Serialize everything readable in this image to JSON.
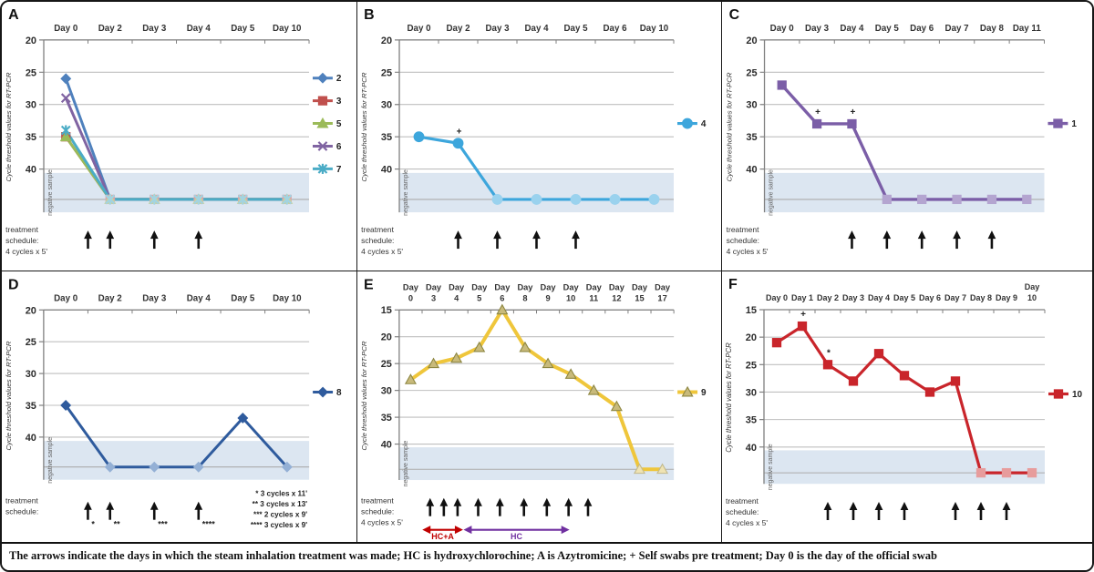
{
  "caption": "The arrows indicate the days in which the steam inhalation treatment was made;  HC is hydroxychlorochine; A is Azytromicine; + Self swabs pre treatment; Day 0 is the day of the official swab",
  "y_axis_label": "Cycle threshold values for RT-PCR",
  "negative_label": "negative sample",
  "colors": {
    "grid": "#BFBFBF",
    "neg_band": "#DCE6F1",
    "axis": "#808080",
    "arrow": "#111111",
    "annotation": "#222222"
  },
  "chart_data": [
    {
      "letter": "A",
      "type": "line",
      "y_axis_inverted": true,
      "ylabel": "Cycle threshold values for RT-PCR",
      "categories": [
        "Day 0",
        "Day 2",
        "Day 3",
        "Day 4",
        "Day 5",
        "Day 10"
      ],
      "y_ticks": [
        20,
        25,
        30,
        35,
        40
      ],
      "y_min": 20,
      "y_max": 47,
      "band_top": 40.6,
      "neg_value": 44.7,
      "series": [
        {
          "name": "2",
          "marker": "diamond",
          "color": "#4F81BD",
          "faded": "#9FB9DA",
          "width": 3,
          "values": [
            26,
            "neg",
            "neg",
            "neg",
            "neg",
            "neg"
          ]
        },
        {
          "name": "3",
          "marker": "square",
          "color": "#C0504D",
          "faded": "#DCA7A5",
          "width": 3,
          "values": [
            35,
            "neg",
            "neg",
            "neg",
            "neg",
            "neg"
          ]
        },
        {
          "name": "5",
          "marker": "triangle",
          "color": "#9BBB59",
          "faded": "#C6D6A0",
          "width": 3,
          "values": [
            35,
            "neg",
            "neg",
            "neg",
            "neg",
            "neg"
          ]
        },
        {
          "name": "6",
          "marker": "x",
          "color": "#8064A2",
          "faded": "#B5A6CC",
          "width": 3,
          "values": [
            29,
            "neg",
            "neg",
            "neg",
            "neg",
            "neg"
          ]
        },
        {
          "name": "7",
          "marker": "asterisk",
          "color": "#4BACC6",
          "faded": "#A2D4E2",
          "width": 3,
          "values": [
            34,
            "neg",
            "neg",
            "neg",
            "neg",
            "neg"
          ]
        }
      ],
      "annotations": [],
      "arrows": [
        {
          "pos": 0.5,
          "label": ""
        },
        {
          "pos": 1,
          "label": ""
        },
        {
          "pos": 2,
          "label": ""
        },
        {
          "pos": 3,
          "label": ""
        }
      ],
      "schedule": [
        "treatment",
        "schedule:",
        "4 cycles  x  5'"
      ],
      "footnotes": [],
      "spans": []
    },
    {
      "letter": "B",
      "type": "line",
      "y_axis_inverted": true,
      "ylabel": "Cycle threshold values for RT-PCR",
      "categories": [
        "Day 0",
        "Day 2",
        "Day 3",
        "Day 4",
        "Day 5",
        "Day 6",
        "Day 10"
      ],
      "y_ticks": [
        20,
        25,
        30,
        35,
        40
      ],
      "y_min": 20,
      "y_max": 47,
      "band_top": 40.6,
      "neg_value": 44.7,
      "series": [
        {
          "name": "4",
          "marker": "circle",
          "color": "#3DA6DC",
          "faded": "#9AD2EE",
          "width": 3.2,
          "values": [
            35,
            36,
            "neg",
            "neg",
            "neg",
            "neg",
            "neg"
          ]
        }
      ],
      "annotations": [
        {
          "day": 1,
          "symbol": "+"
        }
      ],
      "arrows": [
        {
          "pos": 1,
          "label": ""
        },
        {
          "pos": 2,
          "label": ""
        },
        {
          "pos": 3,
          "label": ""
        },
        {
          "pos": 4,
          "label": ""
        }
      ],
      "schedule": [
        "treatment",
        "schedule:",
        "4 cycles  x  5'"
      ],
      "footnotes": [],
      "spans": []
    },
    {
      "letter": "C",
      "type": "line",
      "y_axis_inverted": true,
      "ylabel": "Cycle threshold values for RT-PCR",
      "categories": [
        "Day 0",
        "Day 3",
        "Day 4",
        "Day 5",
        "Day 6",
        "Day 7",
        "Day 8",
        "Day 11"
      ],
      "y_ticks": [
        20,
        25,
        30,
        35,
        40
      ],
      "y_min": 20,
      "y_max": 47,
      "band_top": 40.6,
      "neg_value": 44.7,
      "series": [
        {
          "name": "1",
          "marker": "square",
          "color": "#7B5EA7",
          "faded": "#B4A5D0",
          "width": 3.4,
          "values": [
            27,
            33,
            33,
            "neg",
            "neg",
            "neg",
            "neg",
            "neg"
          ]
        }
      ],
      "annotations": [
        {
          "day": 1,
          "symbol": "+"
        },
        {
          "day": 2,
          "symbol": "+"
        }
      ],
      "arrows": [
        {
          "pos": 2,
          "label": ""
        },
        {
          "pos": 3,
          "label": ""
        },
        {
          "pos": 4,
          "label": ""
        },
        {
          "pos": 5,
          "label": ""
        },
        {
          "pos": 6,
          "label": ""
        }
      ],
      "schedule": [
        "treatment",
        "schedule:",
        "4 cycles  x  5'"
      ],
      "footnotes": [],
      "spans": []
    },
    {
      "letter": "D",
      "type": "line",
      "y_axis_inverted": true,
      "ylabel": "Cycle threshold values for RT-PCR",
      "categories": [
        "Day 0",
        "Day 2",
        "Day 3",
        "Day 4",
        "Day 5",
        "Day 10"
      ],
      "y_ticks": [
        20,
        25,
        30,
        35,
        40
      ],
      "y_min": 20,
      "y_max": 47,
      "band_top": 40.6,
      "neg_value": 44.7,
      "series": [
        {
          "name": "8",
          "marker": "diamond",
          "color": "#2F5B9D",
          "faded": "#94B0D5",
          "width": 3,
          "values": [
            35,
            "neg",
            "neg",
            "neg",
            37,
            "neg"
          ]
        }
      ],
      "annotations": [],
      "arrows": [
        {
          "pos": 0.5,
          "label": "*"
        },
        {
          "pos": 1,
          "label": "**"
        },
        {
          "pos": 2,
          "label": "***"
        },
        {
          "pos": 3,
          "label": "****"
        }
      ],
      "schedule": [
        "treatment",
        "schedule:"
      ],
      "footnotes": [
        "* 3 cycles  x  11'",
        "** 3 cycles  x  13'",
        "*** 2 cycles  x  9'",
        "**** 3 cycles  x  9'"
      ],
      "spans": []
    },
    {
      "letter": "E",
      "type": "line",
      "y_axis_inverted": true,
      "ylabel": "Cycle threshold values for RT-PCR",
      "categories": [
        "Day\n0",
        "Day\n3",
        "Day\n4",
        "Day\n5",
        "Day\n6",
        "Day\n8",
        "Day\n9",
        "Day\n10",
        "Day\n11",
        "Day\n12",
        "Day\n15",
        "Day\n17"
      ],
      "y_ticks": [
        15,
        20,
        25,
        30,
        35,
        40
      ],
      "y_min": 15,
      "y_max": 47,
      "band_top": 40.6,
      "neg_value": 44.7,
      "series": [
        {
          "name": "9",
          "marker": "triangle",
          "color": "#EFC63B",
          "faded": "#EFE3B3",
          "marker_fill": "#C8BA7B",
          "marker_stroke": "#8E8742",
          "faded_stroke": "#C2B98C",
          "width": 4,
          "values": [
            28,
            25,
            24,
            22,
            15,
            22,
            25,
            27,
            30,
            33,
            "neg",
            "neg"
          ]
        }
      ],
      "annotations": [],
      "arrows": [
        {
          "pos": 0.85,
          "label": ""
        },
        {
          "pos": 1.45,
          "label": ""
        },
        {
          "pos": 2.05,
          "label": ""
        },
        {
          "pos": 2.95,
          "label": ""
        },
        {
          "pos": 3.9,
          "label": ""
        },
        {
          "pos": 4.95,
          "label": ""
        },
        {
          "pos": 5.95,
          "label": ""
        },
        {
          "pos": 6.9,
          "label": ""
        },
        {
          "pos": 7.75,
          "label": ""
        }
      ],
      "schedule": [
        "treatment",
        "schedule:",
        "4 cycles  x  5'"
      ],
      "footnotes": [],
      "spans": [
        {
          "label": "HC+A",
          "color": "#C00000",
          "from": 0.55,
          "to": 2.25
        },
        {
          "label": "HC",
          "color": "#7030A0",
          "from": 2.35,
          "to": 6.9
        }
      ]
    },
    {
      "letter": "F",
      "type": "line",
      "y_axis_inverted": true,
      "ylabel": "Cycle threshold values for RT-PCR",
      "categories": [
        "Day 0",
        "Day 1",
        "Day 2",
        "Day 3",
        "Day 4",
        "Day 5",
        "Day 6",
        "Day 7",
        "Day 8",
        "Day 9",
        "Day\n10"
      ],
      "y_ticks": [
        15,
        20,
        25,
        30,
        35,
        40
      ],
      "y_min": 15,
      "y_max": 47,
      "band_top": 40.6,
      "neg_value": 44.7,
      "series": [
        {
          "name": "10",
          "marker": "square",
          "color": "#C9252B",
          "faded": "#E79C9C",
          "width": 3.2,
          "values": [
            21,
            18,
            25,
            28,
            23,
            27,
            30,
            28,
            "neg",
            "neg",
            "neg"
          ]
        }
      ],
      "annotations": [
        {
          "day": 1,
          "symbol": "+"
        },
        {
          "day": 2,
          "symbol": "*"
        }
      ],
      "arrows": [
        {
          "pos": 2,
          "label": ""
        },
        {
          "pos": 3,
          "label": ""
        },
        {
          "pos": 4,
          "label": ""
        },
        {
          "pos": 5,
          "label": ""
        },
        {
          "pos": 7,
          "label": ""
        },
        {
          "pos": 8,
          "label": ""
        },
        {
          "pos": 9,
          "label": ""
        }
      ],
      "schedule": [
        "treatment",
        "schedule:",
        "4 cycles  x  5'"
      ],
      "footnotes": [],
      "spans": []
    }
  ]
}
